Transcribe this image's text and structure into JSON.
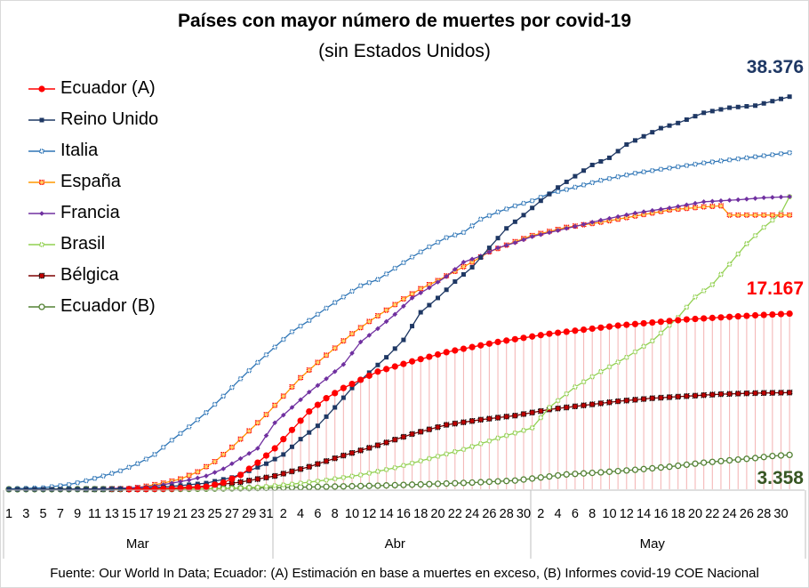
{
  "chart_data": {
    "type": "line",
    "title": "Países con mayor número de muertes por covid-19",
    "subtitle": "(sin Estados Unidos)",
    "x_ticks_mar": [
      "1",
      "3",
      "5",
      "7",
      "9",
      "11",
      "13",
      "15",
      "17",
      "19",
      "21",
      "23",
      "25",
      "27",
      "29",
      "31"
    ],
    "x_ticks_abr": [
      "2",
      "4",
      "6",
      "8",
      "10",
      "12",
      "14",
      "16",
      "18",
      "20",
      "22",
      "24",
      "26",
      "28",
      "30"
    ],
    "x_ticks_may": [
      "2",
      "4",
      "6",
      "8",
      "10",
      "12",
      "14",
      "16",
      "18",
      "20",
      "22",
      "24",
      "26",
      "28",
      "30"
    ],
    "month_labels": [
      "Mar",
      "Abr",
      "May"
    ],
    "ylim": [
      0,
      40000
    ],
    "x": "day index 1–92 (1 = 1 Mar, 32 = 1 Abr, 62 = 1 May)",
    "series": [
      {
        "name": "Ecuador (A)",
        "color": "#ff0000",
        "marker": "circle-filled",
        "points": [
          [
            15,
            0
          ],
          [
            20,
            60
          ],
          [
            24,
            250
          ],
          [
            26,
            650
          ],
          [
            28,
            1400
          ],
          [
            30,
            2600
          ],
          [
            32,
            4000
          ],
          [
            34,
            5800
          ],
          [
            36,
            7600
          ],
          [
            38,
            8900
          ],
          [
            40,
            9900
          ],
          [
            42,
            10700
          ],
          [
            44,
            11500
          ],
          [
            48,
            12500
          ],
          [
            52,
            13400
          ],
          [
            58,
            14400
          ],
          [
            64,
            15200
          ],
          [
            72,
            16000
          ],
          [
            80,
            16600
          ],
          [
            88,
            17000
          ],
          [
            92,
            17167
          ]
        ]
      },
      {
        "name": "Reino Unido",
        "color": "#1f3864",
        "marker": "square-filled",
        "points": [
          [
            1,
            0
          ],
          [
            12,
            10
          ],
          [
            16,
            70
          ],
          [
            20,
            280
          ],
          [
            24,
            600
          ],
          [
            27,
            1150
          ],
          [
            29,
            1800
          ],
          [
            31,
            2500
          ],
          [
            33,
            3400
          ],
          [
            35,
            4900
          ],
          [
            37,
            6200
          ],
          [
            39,
            8000
          ],
          [
            41,
            9900
          ],
          [
            43,
            11400
          ],
          [
            45,
            12900
          ],
          [
            47,
            14600
          ],
          [
            49,
            17300
          ],
          [
            51,
            18700
          ],
          [
            53,
            20300
          ],
          [
            55,
            21700
          ],
          [
            57,
            23600
          ],
          [
            59,
            25500
          ],
          [
            61,
            26800
          ],
          [
            63,
            28200
          ],
          [
            65,
            29500
          ],
          [
            67,
            30600
          ],
          [
            69,
            31700
          ],
          [
            71,
            32400
          ],
          [
            73,
            33700
          ],
          [
            75,
            34500
          ],
          [
            77,
            35300
          ],
          [
            79,
            35800
          ],
          [
            82,
            36800
          ],
          [
            85,
            37300
          ],
          [
            88,
            37500
          ],
          [
            92,
            38376
          ]
        ]
      },
      {
        "name": "Italia",
        "color": "#2e75b6",
        "marker": "square-dotted",
        "points": [
          [
            1,
            30
          ],
          [
            5,
            150
          ],
          [
            8,
            460
          ],
          [
            10,
            830
          ],
          [
            12,
            1300
          ],
          [
            14,
            1800
          ],
          [
            16,
            2500
          ],
          [
            18,
            3400
          ],
          [
            20,
            4800
          ],
          [
            22,
            6100
          ],
          [
            24,
            7500
          ],
          [
            26,
            9100
          ],
          [
            28,
            10800
          ],
          [
            30,
            12400
          ],
          [
            32,
            13900
          ],
          [
            34,
            15400
          ],
          [
            36,
            16500
          ],
          [
            38,
            17700
          ],
          [
            40,
            18800
          ],
          [
            42,
            19900
          ],
          [
            44,
            20500
          ],
          [
            46,
            21600
          ],
          [
            48,
            22700
          ],
          [
            50,
            23700
          ],
          [
            52,
            24600
          ],
          [
            54,
            25100
          ],
          [
            56,
            26400
          ],
          [
            58,
            27100
          ],
          [
            60,
            27700
          ],
          [
            62,
            28200
          ],
          [
            64,
            28900
          ],
          [
            66,
            29300
          ],
          [
            70,
            30200
          ],
          [
            74,
            30900
          ],
          [
            78,
            31400
          ],
          [
            82,
            31900
          ],
          [
            86,
            32300
          ],
          [
            92,
            32900
          ]
        ]
      },
      {
        "name": "España",
        "color": "#ff9900",
        "marker": "square-dotted-red",
        "points": [
          [
            13,
            10
          ],
          [
            15,
            50
          ],
          [
            17,
            300
          ],
          [
            19,
            600
          ],
          [
            21,
            1000
          ],
          [
            23,
            1700
          ],
          [
            25,
            2700
          ],
          [
            27,
            4100
          ],
          [
            29,
            5700
          ],
          [
            31,
            7300
          ],
          [
            33,
            9100
          ],
          [
            35,
            10900
          ],
          [
            37,
            12400
          ],
          [
            39,
            13800
          ],
          [
            41,
            15200
          ],
          [
            43,
            16400
          ],
          [
            45,
            17500
          ],
          [
            47,
            18600
          ],
          [
            49,
            19600
          ],
          [
            51,
            20400
          ],
          [
            53,
            21300
          ],
          [
            55,
            22200
          ],
          [
            57,
            23200
          ],
          [
            60,
            24200
          ],
          [
            62,
            24800
          ],
          [
            66,
            25600
          ],
          [
            70,
            26100
          ],
          [
            74,
            26700
          ],
          [
            78,
            27300
          ],
          [
            82,
            27600
          ],
          [
            84,
            27700
          ],
          [
            85,
            26800
          ],
          [
            88,
            26800
          ],
          [
            92,
            26800
          ]
        ]
      },
      {
        "name": "Francia",
        "color": "#7030a0",
        "marker": "diamond",
        "points": [
          [
            1,
            0
          ],
          [
            8,
            10
          ],
          [
            12,
            50
          ],
          [
            15,
            130
          ],
          [
            18,
            300
          ],
          [
            20,
            600
          ],
          [
            22,
            900
          ],
          [
            24,
            1300
          ],
          [
            26,
            2000
          ],
          [
            28,
            3000
          ],
          [
            30,
            4000
          ],
          [
            32,
            6500
          ],
          [
            34,
            8000
          ],
          [
            36,
            9500
          ],
          [
            38,
            10800
          ],
          [
            40,
            12200
          ],
          [
            42,
            14400
          ],
          [
            44,
            15700
          ],
          [
            46,
            17100
          ],
          [
            48,
            18700
          ],
          [
            50,
            19700
          ],
          [
            52,
            20800
          ],
          [
            54,
            22200
          ],
          [
            56,
            22800
          ],
          [
            58,
            23600
          ],
          [
            60,
            24100
          ],
          [
            62,
            24700
          ],
          [
            66,
            25500
          ],
          [
            70,
            26300
          ],
          [
            74,
            27000
          ],
          [
            78,
            27500
          ],
          [
            82,
            28100
          ],
          [
            86,
            28300
          ],
          [
            89,
            28500
          ],
          [
            92,
            28600
          ]
        ]
      },
      {
        "name": "Brasil",
        "color": "#92d050",
        "marker": "square-dotted",
        "points": [
          [
            18,
            0
          ],
          [
            26,
            60
          ],
          [
            30,
            200
          ],
          [
            34,
            500
          ],
          [
            38,
            900
          ],
          [
            42,
            1400
          ],
          [
            46,
            2100
          ],
          [
            50,
            3000
          ],
          [
            54,
            3900
          ],
          [
            58,
            5000
          ],
          [
            62,
            6000
          ],
          [
            64,
            8000
          ],
          [
            67,
            10000
          ],
          [
            70,
            11500
          ],
          [
            73,
            12900
          ],
          [
            76,
            14500
          ],
          [
            79,
            16800
          ],
          [
            81,
            18800
          ],
          [
            83,
            20000
          ],
          [
            85,
            22000
          ],
          [
            87,
            24000
          ],
          [
            89,
            25600
          ],
          [
            91,
            27000
          ],
          [
            92,
            28600
          ]
        ]
      },
      {
        "name": "Bélgica",
        "color": "#7f0000",
        "marker": "square-dotted-black",
        "points": [
          [
            10,
            0
          ],
          [
            16,
            20
          ],
          [
            20,
            100
          ],
          [
            24,
            300
          ],
          [
            28,
            700
          ],
          [
            32,
            1300
          ],
          [
            36,
            2200
          ],
          [
            40,
            3300
          ],
          [
            44,
            4300
          ],
          [
            48,
            5400
          ],
          [
            52,
            6300
          ],
          [
            56,
            6800
          ],
          [
            60,
            7200
          ],
          [
            64,
            7800
          ],
          [
            68,
            8200
          ],
          [
            72,
            8600
          ],
          [
            76,
            8900
          ],
          [
            80,
            9100
          ],
          [
            84,
            9300
          ],
          [
            88,
            9400
          ],
          [
            92,
            9450
          ]
        ]
      },
      {
        "name": "Ecuador (B)",
        "color": "#548235",
        "marker": "circle-open",
        "points": [
          [
            1,
            0
          ],
          [
            20,
            20
          ],
          [
            28,
            100
          ],
          [
            32,
            150
          ],
          [
            38,
            250
          ],
          [
            44,
            350
          ],
          [
            50,
            500
          ],
          [
            55,
            650
          ],
          [
            60,
            850
          ],
          [
            63,
            1150
          ],
          [
            66,
            1450
          ],
          [
            70,
            1650
          ],
          [
            74,
            1900
          ],
          [
            78,
            2200
          ],
          [
            82,
            2600
          ],
          [
            86,
            2900
          ],
          [
            88,
            3050
          ],
          [
            90,
            3250
          ],
          [
            92,
            3358
          ]
        ]
      }
    ],
    "end_labels": {
      "reino_unido": "38.376",
      "ecuador_a": "17.167",
      "ecuador_b": "3.358"
    },
    "footer": "Fuente: Our World In Data; Ecuador: (A) Estimación en base a muertes en exceso, (B) Informes covid-19 COE Nacional"
  },
  "colors": {
    "uk_label": "#1f3864",
    "ecA_label": "#ff0000",
    "ecB_label": "#375623",
    "ecA_drop": "#f4b8b8"
  }
}
